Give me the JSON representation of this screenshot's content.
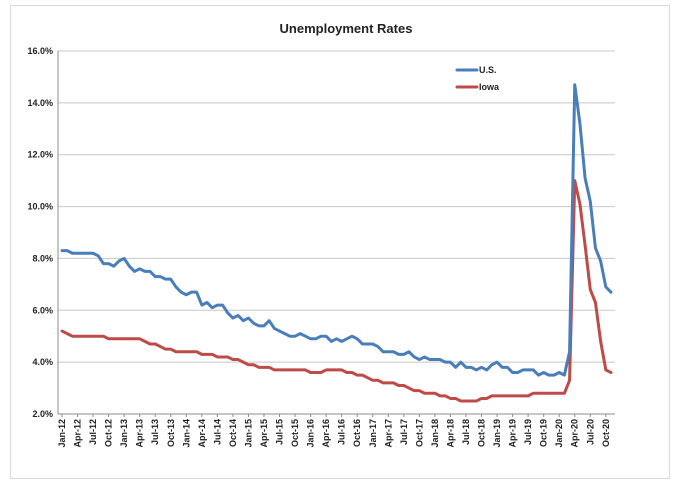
{
  "chart_data": {
    "type": "line",
    "title": "Unemployment Rates",
    "ylim": [
      2.0,
      16.0
    ],
    "y_ticks": [
      "2.0%",
      "4.0%",
      "6.0%",
      "8.0%",
      "10.0%",
      "12.0%",
      "14.0%",
      "16.0%"
    ],
    "x_tick_labels": [
      "Jan-12",
      "Apr-12",
      "Jul-12",
      "Oct-12",
      "Jan-13",
      "Apr-13",
      "Jul-13",
      "Oct-13",
      "Jan-14",
      "Apr-14",
      "Jul-14",
      "Oct-14",
      "Jan-15",
      "Apr-15",
      "Jul-15",
      "Oct-15",
      "Jan-16",
      "Apr-16",
      "Jul-16",
      "Oct-16",
      "Jan-17",
      "Apr-17",
      "Jul-17",
      "Oct-17",
      "Jan-18",
      "Apr-18",
      "Jul-18",
      "Oct-18",
      "Jan-19",
      "Apr-19",
      "Jul-19",
      "Oct-19",
      "Jan-20",
      "Apr-20",
      "Jul-20",
      "Oct-20"
    ],
    "x_start": "2012-01",
    "grid": "horizontal",
    "legend_position": "top-right",
    "series": [
      {
        "name": "U.S.",
        "color": "#4a7ebb",
        "values": [
          8.3,
          8.3,
          8.2,
          8.2,
          8.2,
          8.2,
          8.2,
          8.1,
          7.8,
          7.8,
          7.7,
          7.9,
          8.0,
          7.7,
          7.5,
          7.6,
          7.5,
          7.5,
          7.3,
          7.3,
          7.2,
          7.2,
          6.9,
          6.7,
          6.6,
          6.7,
          6.7,
          6.2,
          6.3,
          6.1,
          6.2,
          6.2,
          5.9,
          5.7,
          5.8,
          5.6,
          5.7,
          5.5,
          5.4,
          5.4,
          5.6,
          5.3,
          5.2,
          5.1,
          5.0,
          5.0,
          5.1,
          5.0,
          4.9,
          4.9,
          5.0,
          5.0,
          4.8,
          4.9,
          4.8,
          4.9,
          5.0,
          4.9,
          4.7,
          4.7,
          4.7,
          4.6,
          4.4,
          4.4,
          4.4,
          4.3,
          4.3,
          4.4,
          4.2,
          4.1,
          4.2,
          4.1,
          4.1,
          4.1,
          4.0,
          4.0,
          3.8,
          4.0,
          3.8,
          3.8,
          3.7,
          3.8,
          3.7,
          3.9,
          4.0,
          3.8,
          3.8,
          3.6,
          3.6,
          3.7,
          3.7,
          3.7,
          3.5,
          3.6,
          3.5,
          3.5,
          3.6,
          3.5,
          4.4,
          14.7,
          13.2,
          11.1,
          10.2,
          8.4,
          7.9,
          6.9,
          6.7
        ]
      },
      {
        "name": "Iowa",
        "color": "#be4b48",
        "values": [
          5.2,
          5.1,
          5.0,
          5.0,
          5.0,
          5.0,
          5.0,
          5.0,
          5.0,
          4.9,
          4.9,
          4.9,
          4.9,
          4.9,
          4.9,
          4.9,
          4.8,
          4.7,
          4.7,
          4.6,
          4.5,
          4.5,
          4.4,
          4.4,
          4.4,
          4.4,
          4.4,
          4.3,
          4.3,
          4.3,
          4.2,
          4.2,
          4.2,
          4.1,
          4.1,
          4.0,
          3.9,
          3.9,
          3.8,
          3.8,
          3.8,
          3.7,
          3.7,
          3.7,
          3.7,
          3.7,
          3.7,
          3.7,
          3.6,
          3.6,
          3.6,
          3.7,
          3.7,
          3.7,
          3.7,
          3.6,
          3.6,
          3.5,
          3.5,
          3.4,
          3.3,
          3.3,
          3.2,
          3.2,
          3.2,
          3.1,
          3.1,
          3.0,
          2.9,
          2.9,
          2.8,
          2.8,
          2.8,
          2.7,
          2.7,
          2.6,
          2.6,
          2.5,
          2.5,
          2.5,
          2.5,
          2.6,
          2.6,
          2.7,
          2.7,
          2.7,
          2.7,
          2.7,
          2.7,
          2.7,
          2.7,
          2.8,
          2.8,
          2.8,
          2.8,
          2.8,
          2.8,
          2.8,
          3.3,
          11.0,
          10.1,
          8.5,
          6.8,
          6.3,
          4.8,
          3.7,
          3.6
        ]
      }
    ]
  }
}
